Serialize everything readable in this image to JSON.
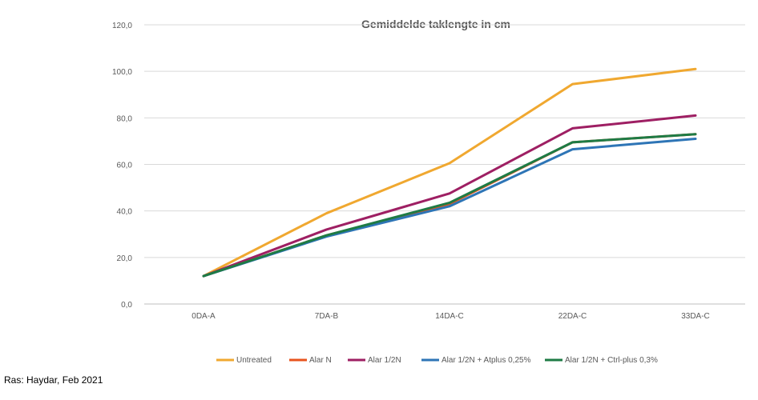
{
  "chart_data": {
    "type": "line",
    "title": "Gemiddelde taklengte in cm",
    "categories": [
      "0DA-A",
      "7DA-B",
      "14DA-C",
      "22DA-C",
      "33DA-C"
    ],
    "ylim": [
      0,
      120
    ],
    "yticks": [
      "0,0",
      "20,0",
      "40,0",
      "60,0",
      "80,0",
      "100,0",
      "120,0"
    ],
    "grid": true,
    "legend": "bottom",
    "series": [
      {
        "name": "Untreated",
        "color": "#F0A830",
        "values": [
          12.0,
          39.0,
          60.5,
          94.5,
          101.0
        ]
      },
      {
        "name": "Alar N",
        "color": "#E8541E",
        "values": [
          12.0,
          29.5,
          43.0,
          69.5,
          73.0
        ]
      },
      {
        "name": "Alar 1/2N",
        "color": "#9E1F63",
        "values": [
          12.0,
          32.0,
          47.5,
          75.5,
          81.0
        ]
      },
      {
        "name": "Alar 1/2N + Atplus 0,25%",
        "color": "#2E75B6",
        "values": [
          12.0,
          29.0,
          42.0,
          66.5,
          71.0
        ]
      },
      {
        "name": "Alar 1/2N + Ctrl-plus 0,3%",
        "color": "#1E7B45",
        "values": [
          12.0,
          29.5,
          43.5,
          69.5,
          73.0
        ]
      }
    ]
  },
  "caption": "Ras: Haydar,  Feb 2021"
}
